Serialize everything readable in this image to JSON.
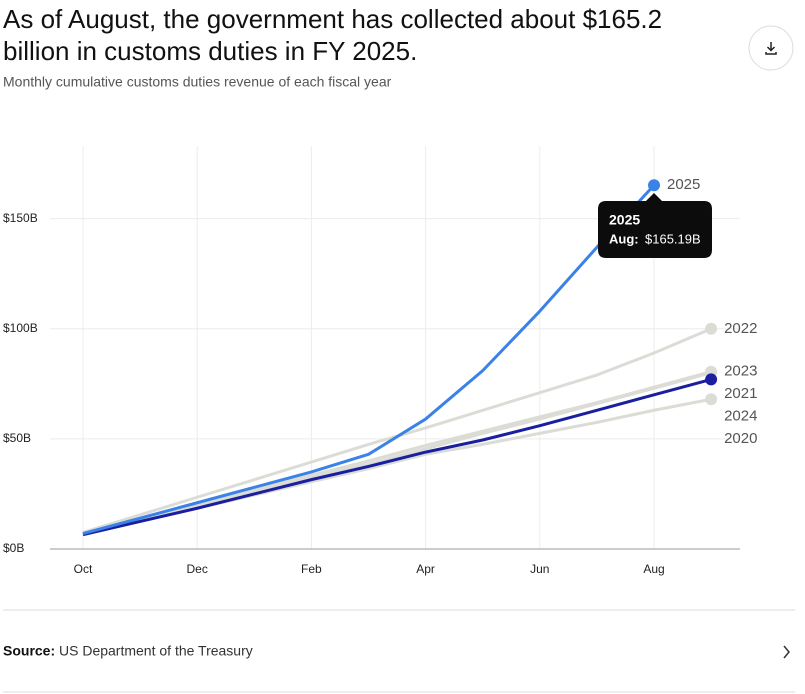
{
  "chart_data": {
    "type": "line",
    "title_lines": [
      "As of August, the government has collected about $165.2",
      "billion in customs duties in FY 2025."
    ],
    "subtitle": "Monthly cumulative customs duties revenue of each fiscal year",
    "categories": [
      "Oct",
      null,
      "Dec",
      null,
      "Feb",
      null,
      "Apr",
      null,
      "Jun",
      null,
      "Aug",
      null
    ],
    "ylim": [
      0,
      183
    ],
    "yticks": [
      {
        "value": 0,
        "label": "$0B"
      },
      {
        "value": 50,
        "label": "$50B"
      },
      {
        "value": 100,
        "label": "$100B"
      },
      {
        "value": 150,
        "label": "$150B"
      }
    ],
    "grid": true,
    "series": [
      {
        "name": "2020",
        "color": "#dcdcd6",
        "values": [
          6.5,
          12.5,
          18.5,
          24.5,
          30.5,
          36.5,
          43,
          47.5,
          52.5,
          57.5,
          63,
          68
        ]
      },
      {
        "name": "2021",
        "color": "#dcdcd6",
        "values": [
          7,
          13.5,
          19.5,
          26,
          32.5,
          38.5,
          45.5,
          52.5,
          59,
          66,
          73,
          80
        ]
      },
      {
        "name": "2022",
        "color": "#dcdcd6",
        "values": [
          7.5,
          15.5,
          23.5,
          31.5,
          39.5,
          47.5,
          55,
          63,
          71,
          79,
          89,
          100
        ]
      },
      {
        "name": "2023",
        "color": "#dcdcd6",
        "values": [
          7.5,
          14,
          20.5,
          27,
          33.5,
          40,
          47,
          53.5,
          60,
          66.5,
          73.5,
          80.5
        ]
      },
      {
        "name": "2024",
        "color": "#1a1fa0",
        "values": [
          6.5,
          12.5,
          18.5,
          25,
          31.5,
          37.5,
          44,
          49.5,
          56,
          63,
          70,
          77
        ]
      },
      {
        "name": "2025",
        "color": "#3b82e8",
        "values": [
          7,
          14,
          21,
          28,
          35,
          43,
          59,
          81,
          108,
          137,
          165.19,
          null
        ]
      }
    ],
    "tooltip": {
      "title": "2025",
      "label": "Aug:",
      "value": "$165.19B"
    },
    "source_label": "Source:",
    "source": "US Department of the Treasury"
  }
}
